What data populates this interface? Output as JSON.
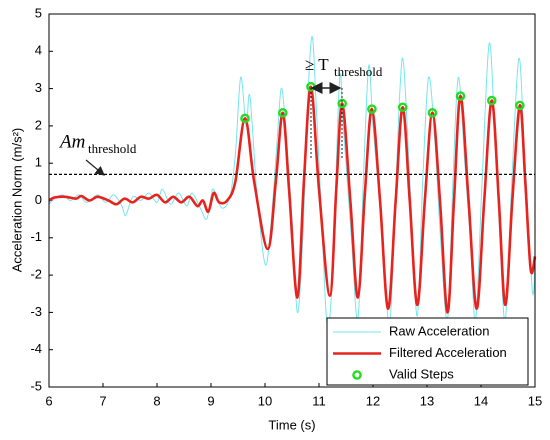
{
  "chart_data": {
    "type": "line",
    "x_label": "Time (s)",
    "y_label": "Acceleration Norm (m/s²)",
    "xlim": [
      6,
      15
    ],
    "xticks": [
      6,
      7,
      8,
      9,
      10,
      11,
      12,
      13,
      14,
      15
    ],
    "ylim": [
      -5,
      5
    ],
    "yticks": [
      -5,
      -4,
      -3,
      -2,
      -1,
      0,
      1,
      2,
      3,
      4,
      5
    ],
    "threshold": 0.7,
    "annotations": {
      "amplitude": {
        "text": "Am",
        "subscript": "threshold"
      },
      "interval": {
        "text": "≥ T",
        "subscript": "threshold"
      }
    },
    "legend": "lower right",
    "series": [
      {
        "name": "Raw Acceleration",
        "color": "#74e6ec",
        "style": "line",
        "x": [
          6.0,
          6.1,
          6.25,
          6.4,
          6.55,
          6.7,
          6.9,
          7.05,
          7.2,
          7.35,
          7.42,
          7.55,
          7.7,
          7.85,
          8.0,
          8.1,
          8.25,
          8.4,
          8.55,
          8.65,
          8.8,
          8.92,
          9.0,
          9.05,
          9.2,
          9.35,
          9.45,
          9.55,
          9.65,
          9.72,
          9.85,
          10.0,
          10.1,
          10.22,
          10.3,
          10.38,
          10.5,
          10.6,
          10.7,
          10.78,
          10.87,
          10.95,
          11.05,
          11.15,
          11.25,
          11.38,
          11.45,
          11.6,
          11.72,
          11.82,
          11.92,
          12.0,
          12.15,
          12.3,
          12.4,
          12.5,
          12.57,
          12.7,
          12.82,
          12.92,
          13.03,
          13.15,
          13.25,
          13.38,
          13.48,
          13.58,
          13.7,
          13.8,
          13.9,
          14.02,
          14.15,
          14.25,
          14.35,
          14.45,
          14.57,
          14.7,
          14.8,
          14.95,
          15.0
        ],
        "values": [
          -0.1,
          0.05,
          0.15,
          0.0,
          0.15,
          -0.05,
          0.15,
          -0.05,
          0.15,
          -0.15,
          -0.4,
          0.1,
          0.0,
          0.2,
          -0.05,
          0.3,
          -0.1,
          0.2,
          -0.15,
          0.2,
          -0.2,
          -0.5,
          0.1,
          0.3,
          -0.2,
          0.1,
          1.2,
          3.3,
          2.0,
          2.8,
          0.2,
          -1.7,
          -0.8,
          1.5,
          3.0,
          2.0,
          -0.5,
          -3.0,
          -1.0,
          2.3,
          4.4,
          2.5,
          -0.5,
          -3.3,
          -2.0,
          3.2,
          2.0,
          -1.0,
          -3.2,
          0.5,
          3.6,
          2.0,
          -0.5,
          -3.3,
          -0.5,
          3.0,
          3.6,
          0,
          -3.1,
          0.5,
          3.3,
          1.5,
          -1,
          -3.2,
          0.5,
          3.3,
          1.0,
          -1.0,
          -3.2,
          0.5,
          4.2,
          2.0,
          -1,
          -3.2,
          0.5,
          3.8,
          1.5,
          -2.4,
          -1.6
        ]
      },
      {
        "name": "Filtered Acceleration",
        "color": "#e8231e",
        "style": "line",
        "x": [
          6.0,
          6.1,
          6.3,
          6.5,
          6.6,
          6.75,
          6.9,
          7.1,
          7.25,
          7.4,
          7.55,
          7.7,
          7.85,
          8.0,
          8.15,
          8.3,
          8.45,
          8.6,
          8.75,
          8.85,
          8.95,
          9.05,
          9.15,
          9.3,
          9.45,
          9.63,
          9.8,
          10.05,
          10.2,
          10.33,
          10.45,
          10.6,
          10.72,
          10.85,
          11.0,
          11.2,
          11.32,
          11.43,
          11.58,
          11.72,
          11.85,
          11.98,
          12.13,
          12.28,
          12.42,
          12.55,
          12.68,
          12.82,
          12.96,
          13.1,
          13.24,
          13.38,
          13.5,
          13.62,
          13.77,
          13.92,
          14.06,
          14.2,
          14.33,
          14.45,
          14.58,
          14.72,
          14.82,
          14.92,
          15.0
        ],
        "values": [
          0,
          0.08,
          0.1,
          0.05,
          0.12,
          0.0,
          0.1,
          0.0,
          -0.1,
          0.05,
          -0.05,
          0.1,
          0.05,
          0.15,
          -0.05,
          0.1,
          -0.05,
          0.1,
          -0.15,
          0.0,
          -0.3,
          0.2,
          -0.05,
          0.0,
          0.5,
          2.2,
          0.5,
          -1.3,
          0.5,
          2.35,
          0.2,
          -2.6,
          0.5,
          3.05,
          0.3,
          -2.55,
          0.3,
          2.6,
          0,
          -2.6,
          0.2,
          2.45,
          0,
          -2.9,
          0,
          2.5,
          0,
          -2.8,
          0,
          2.35,
          0,
          -3.0,
          0,
          2.8,
          0,
          -2.9,
          0,
          2.68,
          0,
          -2.8,
          0,
          2.55,
          0.5,
          -1.85,
          -1.5
        ]
      },
      {
        "name": "Valid Steps",
        "color": "#22dd22",
        "style": "marker",
        "x": [
          9.63,
          10.33,
          10.85,
          11.43,
          11.98,
          12.55,
          13.1,
          13.62,
          14.2,
          14.72
        ],
        "values": [
          2.2,
          2.35,
          3.05,
          2.6,
          2.45,
          2.5,
          2.35,
          2.8,
          2.68,
          2.55
        ]
      }
    ]
  }
}
